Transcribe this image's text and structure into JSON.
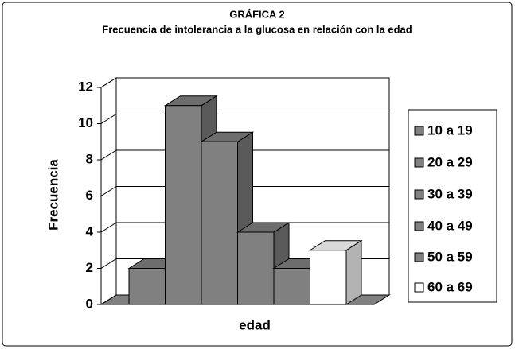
{
  "chart_data": {
    "type": "bar3d",
    "title": "GRÁFICA 2",
    "subtitle": "Frecuencia de intolerancia a la glucosa en relación con la edad",
    "xlabel": "edad",
    "ylabel": "Frecuencia",
    "categories": [
      null
    ],
    "series": [
      {
        "name": "10 a 19",
        "color": "#808080",
        "values": [
          2
        ]
      },
      {
        "name": "20 a 29",
        "color": "#808080",
        "values": [
          11
        ]
      },
      {
        "name": "30 a 39",
        "color": "#808080",
        "values": [
          9
        ]
      },
      {
        "name": "40 a 49",
        "color": "#808080",
        "values": [
          4
        ]
      },
      {
        "name": "50 a 59",
        "color": "#808080",
        "values": [
          2
        ]
      },
      {
        "name": "60 a 69",
        "color": "#ffffff",
        "values": [
          3
        ]
      }
    ],
    "ylim": [
      0,
      12
    ],
    "yticks": [
      0,
      2,
      4,
      6,
      8,
      10,
      12
    ],
    "grid": true,
    "legend": "right"
  }
}
